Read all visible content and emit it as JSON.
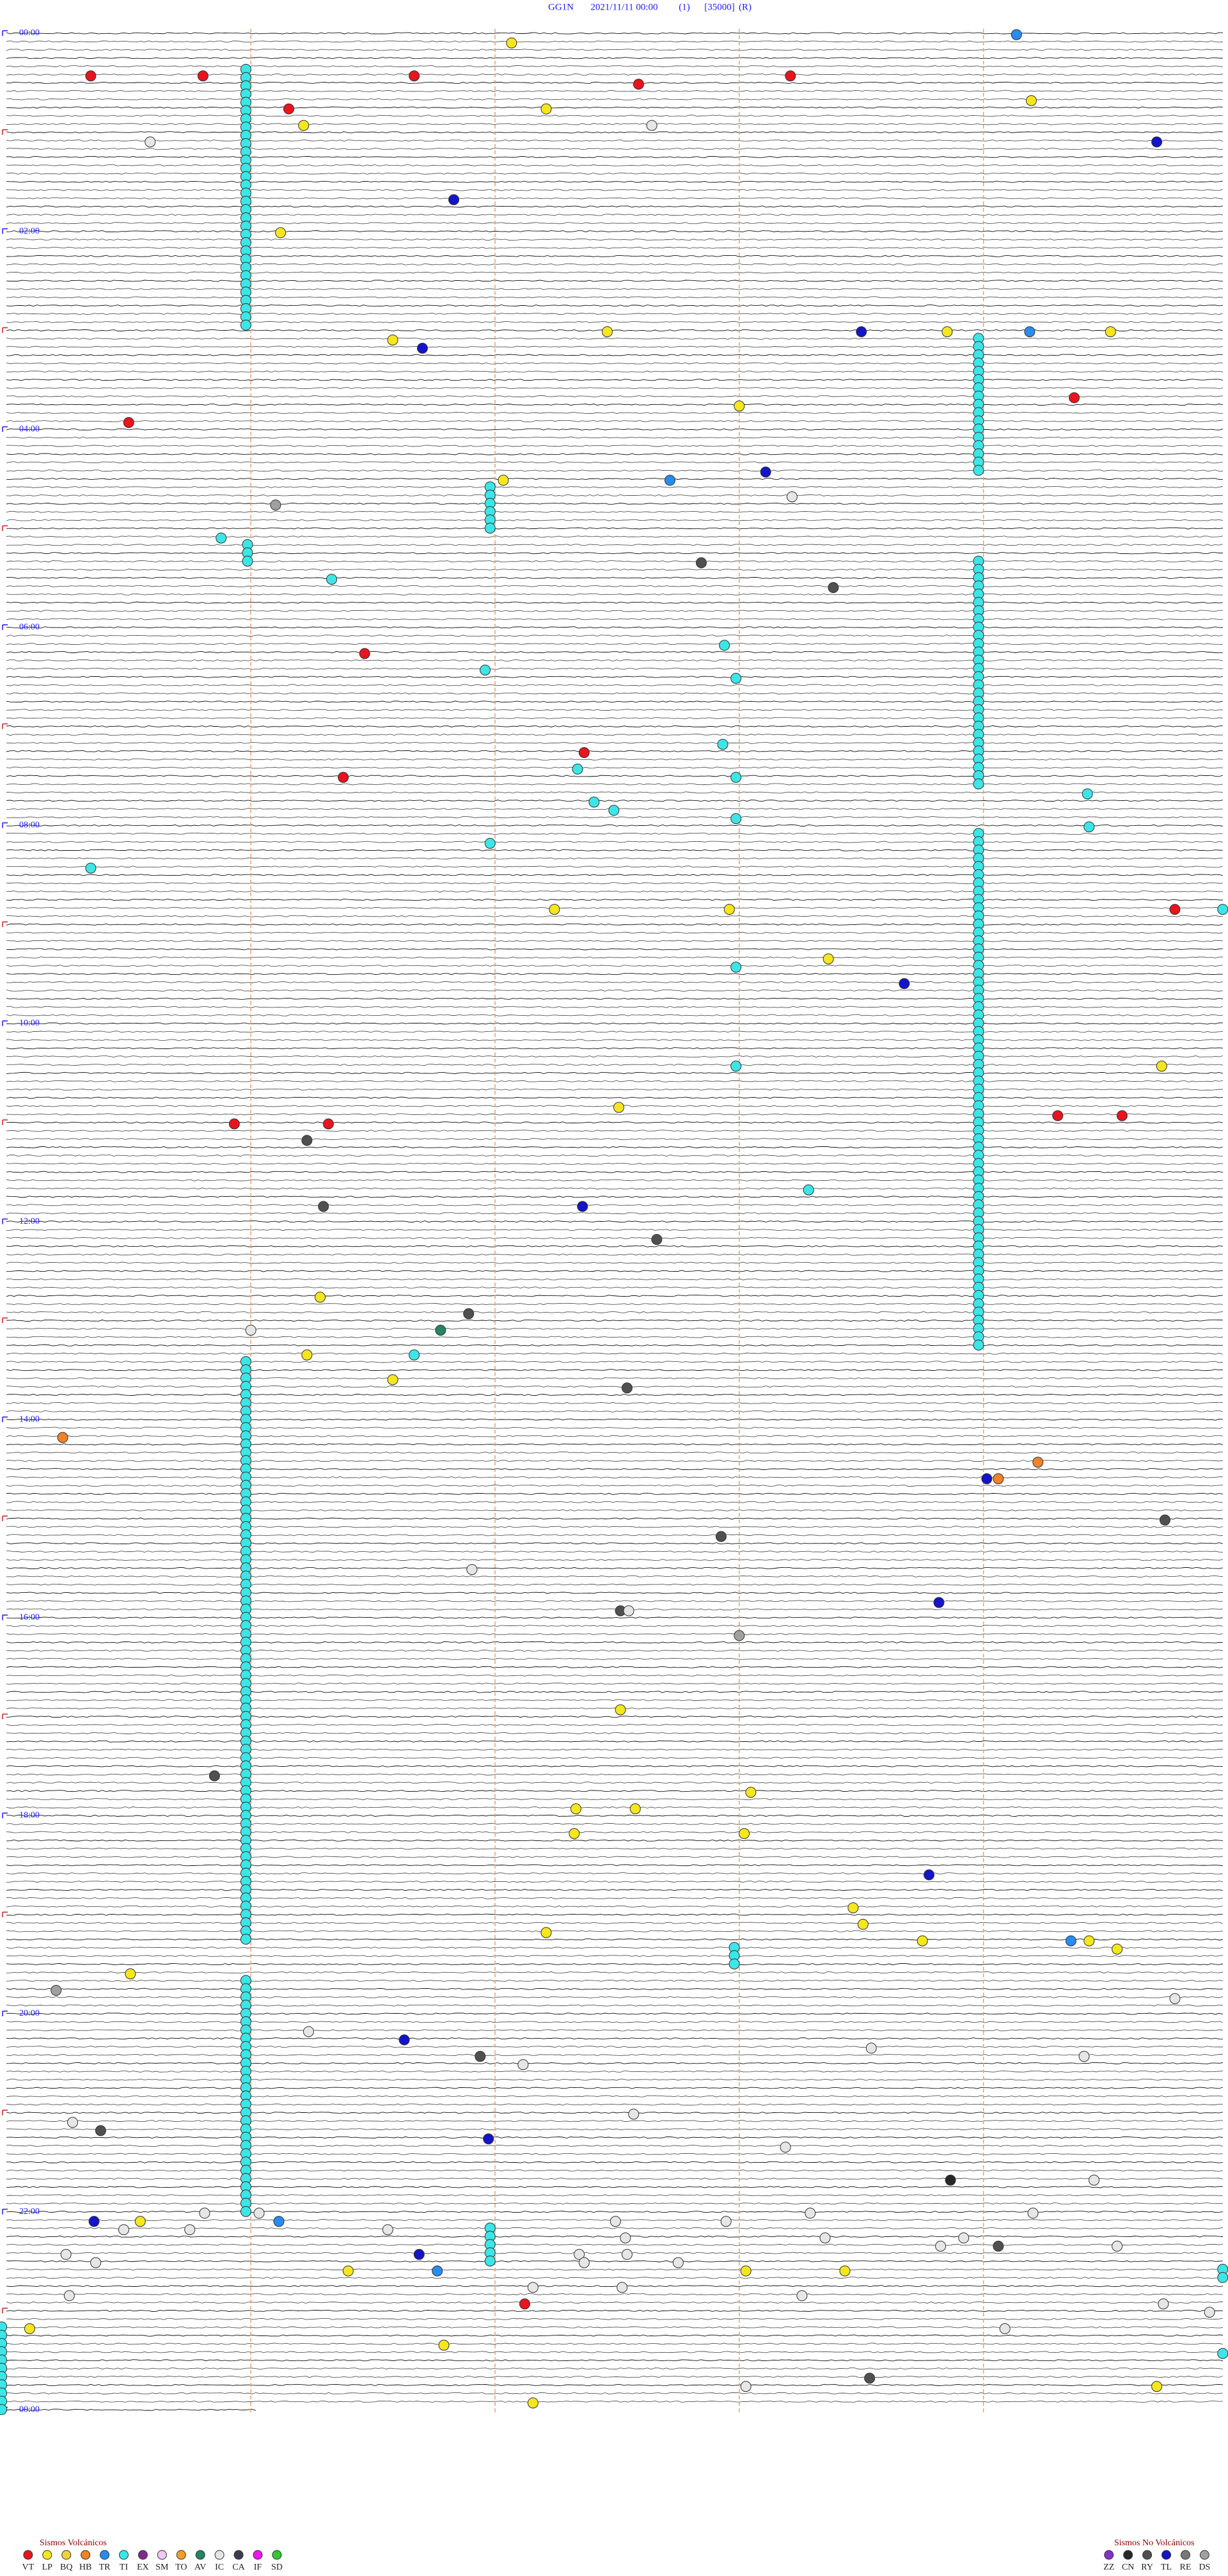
{
  "header": {
    "station": "GG1N",
    "datetime": "2021/11/11 00:00",
    "channel": "(1)",
    "scale": "[35000]",
    "mode": "(R)"
  },
  "time_labels": [
    "00:00",
    "02:00",
    "04:00",
    "06:00",
    "08:00",
    "10:00",
    "12:00",
    "14:00",
    "16:00",
    "18:00",
    "20:00",
    "22:00",
    "00:00"
  ],
  "legend_volcanic": {
    "title": "Sismos Volcánicos",
    "items": [
      {
        "code": "VT",
        "color": "#e8141e"
      },
      {
        "code": "LP",
        "color": "#f5e61e"
      },
      {
        "code": "BQ",
        "color": "#f0d23c"
      },
      {
        "code": "HB",
        "color": "#f08228"
      },
      {
        "code": "TR",
        "color": "#288cf0"
      },
      {
        "code": "TI",
        "color": "#3ce6e6"
      },
      {
        "code": "EX",
        "color": "#82288c"
      },
      {
        "code": "SM",
        "color": "#f0c8f0"
      },
      {
        "code": "TO",
        "color": "#f0a028"
      },
      {
        "code": "AV",
        "color": "#288264"
      },
      {
        "code": "IC",
        "color": "#e6e6e6"
      },
      {
        "code": "CA",
        "color": "#3c3c50"
      },
      {
        "code": "IF",
        "color": "#f014f0"
      },
      {
        "code": "SD",
        "color": "#32c832"
      }
    ]
  },
  "legend_non_volcanic": {
    "title": "Sismos No Volcánicos",
    "items": [
      {
        "code": "ZZ",
        "color": "#8232c8"
      },
      {
        "code": "CN",
        "color": "#282828"
      },
      {
        "code": "RY",
        "color": "#505050"
      },
      {
        "code": "TL",
        "color": "#1414c8"
      },
      {
        "code": "RE",
        "color": "#787878"
      },
      {
        "code": "DS",
        "color": "#a0a0a0"
      }
    ]
  }
}
